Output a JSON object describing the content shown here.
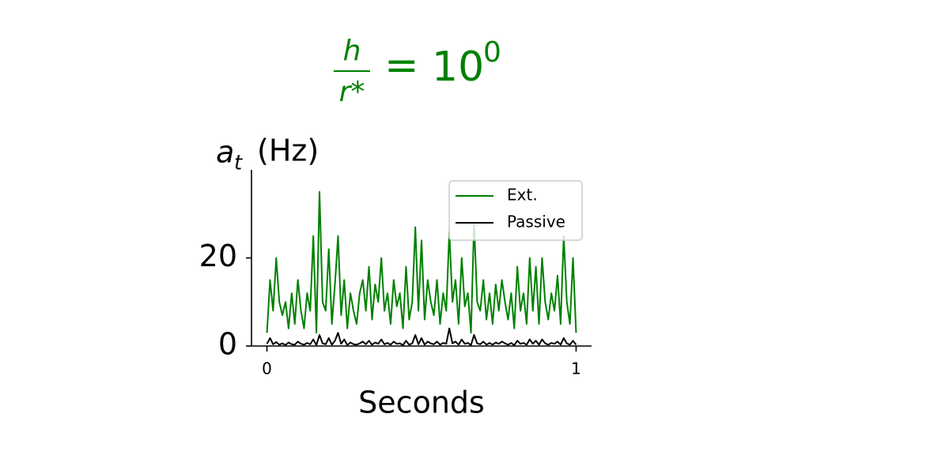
{
  "chart_data": {
    "type": "line",
    "title": {
      "numerator": "h",
      "denominator": "r*",
      "rhs": "10",
      "exponent": "0"
    },
    "y_label": {
      "symbol": "a",
      "subscript": "t",
      "unit": "(Hz)"
    },
    "x_label": "Seconds",
    "x": [
      0,
      0.01,
      0.02,
      0.03,
      0.04,
      0.05,
      0.06,
      0.07,
      0.08,
      0.09,
      0.1,
      0.11,
      0.12,
      0.13,
      0.14,
      0.15,
      0.16,
      0.17,
      0.18,
      0.19,
      0.2,
      0.21,
      0.22,
      0.23,
      0.24,
      0.25,
      0.26,
      0.27,
      0.28,
      0.29,
      0.3,
      0.31,
      0.32,
      0.33,
      0.34,
      0.35,
      0.36,
      0.37,
      0.38,
      0.39,
      0.4,
      0.41,
      0.42,
      0.43,
      0.44,
      0.45,
      0.46,
      0.47,
      0.48,
      0.49,
      0.5,
      0.51,
      0.52,
      0.53,
      0.54,
      0.55,
      0.56,
      0.57,
      0.58,
      0.59,
      0.6,
      0.61,
      0.62,
      0.63,
      0.64,
      0.65,
      0.66,
      0.67,
      0.68,
      0.69,
      0.7,
      0.71,
      0.72,
      0.73,
      0.74,
      0.75,
      0.76,
      0.77,
      0.78,
      0.79,
      0.8,
      0.81,
      0.82,
      0.83,
      0.84,
      0.85,
      0.86,
      0.87,
      0.88,
      0.89,
      0.9,
      0.91,
      0.92,
      0.93,
      0.94,
      0.95,
      0.96,
      0.97,
      0.98,
      0.99,
      1
    ],
    "series": [
      {
        "name": "Ext.",
        "color": "#008000",
        "values": [
          3,
          15,
          8,
          20,
          10,
          7,
          10,
          4,
          12,
          5,
          15,
          8,
          4,
          12,
          8,
          25,
          3,
          35,
          10,
          8,
          22,
          5,
          14,
          25,
          7,
          15,
          4,
          12,
          8,
          5,
          12,
          15,
          8,
          18,
          6,
          14,
          10,
          20,
          8,
          12,
          5,
          15,
          9,
          12,
          4,
          18,
          6,
          10,
          27,
          8,
          24,
          6,
          15,
          10,
          7,
          15,
          5,
          12,
          8,
          26,
          10,
          15,
          5,
          20,
          9,
          12,
          3,
          28,
          10,
          8,
          15,
          6,
          12,
          5,
          14,
          8,
          15,
          10,
          6,
          12,
          4,
          18,
          8,
          12,
          5,
          20,
          8,
          18,
          5,
          20,
          10,
          6,
          12,
          8,
          16,
          5,
          25,
          10,
          5,
          20,
          3
        ]
      },
      {
        "name": "Passive",
        "color": "#000000",
        "values": [
          0.5,
          1.8,
          0.4,
          0.9,
          0.3,
          0.6,
          0.2,
          0.8,
          0.4,
          0.3,
          1,
          0.5,
          0.3,
          0.7,
          0.4,
          1.5,
          0.2,
          2.5,
          0.6,
          0.4,
          1.8,
          0.3,
          1.2,
          3,
          0.5,
          1.5,
          0.2,
          0.8,
          0.4,
          0.3,
          0.6,
          1,
          0.4,
          1.2,
          0.3,
          0.8,
          0.5,
          1.5,
          0.4,
          0.7,
          0.3,
          1,
          0.5,
          0.6,
          0.2,
          1.2,
          0.3,
          0.6,
          2.5,
          0.4,
          1.8,
          0.3,
          1,
          0.6,
          0.4,
          1,
          0.3,
          0.7,
          0.5,
          4,
          0.6,
          1,
          0.3,
          1.5,
          0.5,
          0.7,
          0.2,
          2.5,
          0.6,
          0.4,
          1,
          0.3,
          0.7,
          0.3,
          0.8,
          0.5,
          1,
          0.6,
          0.3,
          0.7,
          0.2,
          1.2,
          0.5,
          0.7,
          0.3,
          1.5,
          0.5,
          1.2,
          0.3,
          1.5,
          0.6,
          0.3,
          0.7,
          0.5,
          1,
          0.3,
          1.8,
          0.6,
          0.3,
          1.2,
          0.3
        ]
      }
    ],
    "xlim": [
      -0.05,
      1.05
    ],
    "ylim": [
      0,
      40
    ],
    "xticks": [
      0,
      1
    ],
    "yticks": [
      0,
      20
    ],
    "legend": "upper right"
  }
}
